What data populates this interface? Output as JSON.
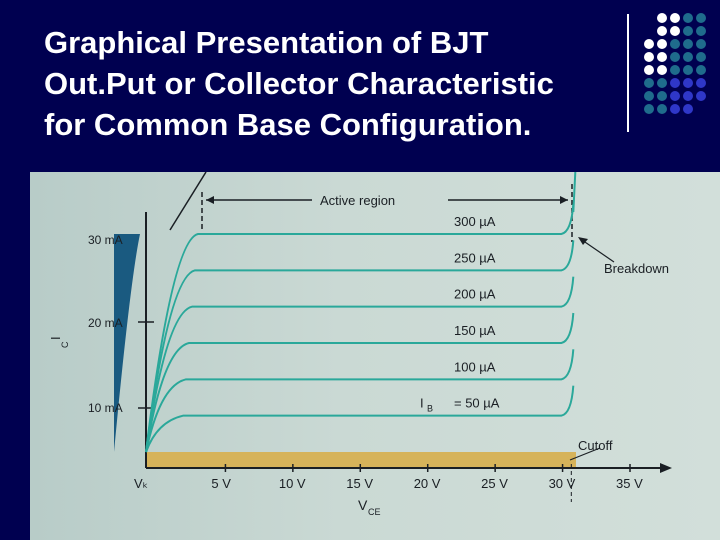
{
  "slide": {
    "title_lines": [
      "Graphical Presentation of BJT",
      "Out.Put or Collector Characteristic",
      "for Common Base Configuration."
    ],
    "accent_color": "#000050",
    "dot_colors": [
      "#ffffff",
      "#1f6c8c",
      "#2f37c8"
    ]
  },
  "chart_data": {
    "type": "line",
    "x_ticks": [
      "Vₖ",
      "5 V",
      "10 V",
      "15 V",
      "20 V",
      "25 V",
      "30 V",
      "35 V"
    ],
    "y_ticks": [
      "30 mA",
      "20 mA",
      "10 mA"
    ],
    "xlabel": "V",
    "xlabel_sub": "CE",
    "ylabel": "I",
    "ylabel_sub": "C",
    "series_prefix": "I",
    "series_prefix_sub": "B",
    "series": [
      {
        "name": "300 µA",
        "ic_mA": 30
      },
      {
        "name": "250 µA",
        "ic_mA": 25
      },
      {
        "name": "200 µA",
        "ic_mA": 20
      },
      {
        "name": "150 µA",
        "ic_mA": 15
      },
      {
        "name": "100 µA",
        "ic_mA": 10
      },
      {
        "name": "= 50 µA",
        "ic_mA": 5
      }
    ],
    "x_range_V": [
      0,
      35
    ],
    "y_range_mA": [
      0,
      33
    ],
    "breakdown_V": 30.5,
    "annotations": {
      "active_region": "Active region",
      "breakdown": "Breakdown",
      "cutoff": "Cutoff"
    }
  }
}
